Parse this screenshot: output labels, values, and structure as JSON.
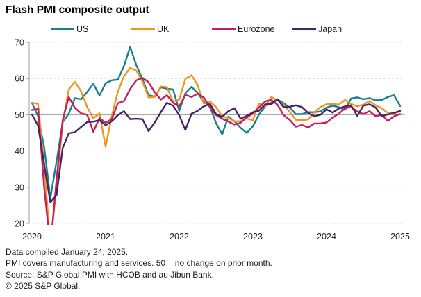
{
  "title": "Flash PMI composite output",
  "footer": {
    "line1": "Data compiled January 24, 2025.",
    "line2": "PMI covers manufacturing and services. 50 = no change on prior month.",
    "line3": "Source: S&P Global PMI with HCOB and au Jibun Bank.",
    "line4": "© 2025 S&P Global."
  },
  "colors": {
    "grid_dashed": "#dcdcdc",
    "grid_solid": "#9c9c9c",
    "axis": "#9c9c9c",
    "text": "#1f1f1f"
  },
  "chart_data": {
    "type": "line",
    "title": "Flash PMI composite output",
    "x_unit": "month",
    "x_range": [
      "2020-01",
      "2025-01"
    ],
    "x_tick_labels": [
      "2020",
      "2021",
      "2022",
      "2023",
      "2024",
      "2025"
    ],
    "y_ticks": [
      20,
      30,
      40,
      50,
      60,
      70
    ],
    "ylim": [
      20,
      70
    ],
    "reference_line": 50,
    "grid": "horizontal, dashed except solid line at 50",
    "legend_position": "top",
    "series": [
      {
        "name": "US",
        "color": "#17808e",
        "values": [
          53.3,
          49.6,
          40.9,
          27.0,
          37.0,
          47.9,
          50.3,
          54.6,
          54.3,
          56.3,
          58.6,
          55.3,
          58.7,
          59.5,
          59.7,
          63.5,
          68.7,
          63.7,
          59.9,
          55.4,
          55.0,
          57.6,
          57.2,
          57.0,
          51.1,
          55.9,
          57.7,
          56.0,
          53.6,
          52.3,
          47.7,
          44.6,
          49.5,
          48.2,
          46.4,
          45.0,
          46.8,
          50.1,
          52.3,
          53.4,
          54.3,
          53.2,
          52.0,
          50.2,
          50.2,
          50.7,
          50.7,
          50.9,
          52.0,
          52.5,
          52.1,
          51.3,
          54.5,
          54.8,
          54.3,
          54.6,
          54.0,
          54.1,
          54.9,
          55.4,
          52.4
        ]
      },
      {
        "name": "UK",
        "color": "#f0941e",
        "values": [
          53.3,
          53.0,
          36.0,
          13.8,
          30.0,
          47.7,
          57.0,
          59.1,
          56.5,
          52.1,
          49.0,
          50.4,
          41.2,
          49.6,
          56.4,
          60.7,
          62.9,
          62.2,
          59.2,
          54.8,
          54.9,
          57.8,
          57.6,
          53.6,
          54.2,
          59.9,
          60.9,
          58.2,
          53.1,
          53.7,
          52.1,
          49.6,
          49.1,
          48.2,
          48.2,
          49.0,
          48.5,
          53.1,
          52.2,
          54.9,
          54.0,
          52.8,
          50.8,
          48.6,
          48.5,
          48.7,
          50.7,
          52.1,
          52.9,
          53.0,
          52.8,
          54.1,
          53.0,
          52.3,
          52.8,
          53.8,
          52.6,
          51.8,
          50.5,
          50.4,
          50.9
        ]
      },
      {
        "name": "Eurozone",
        "color": "#c41e5c",
        "values": [
          51.3,
          51.6,
          29.7,
          13.6,
          31.9,
          48.5,
          54.9,
          51.9,
          50.4,
          50.0,
          45.3,
          49.1,
          47.8,
          48.8,
          53.2,
          53.8,
          57.1,
          59.5,
          60.2,
          59.0,
          56.2,
          54.2,
          55.4,
          53.3,
          52.3,
          55.5,
          54.9,
          55.8,
          54.8,
          52.0,
          49.9,
          48.9,
          48.1,
          47.3,
          47.8,
          49.3,
          50.3,
          52.0,
          53.7,
          54.1,
          52.8,
          49.9,
          48.6,
          46.7,
          47.2,
          46.5,
          47.6,
          47.6,
          47.9,
          49.2,
          50.3,
          51.7,
          52.2,
          50.9,
          50.2,
          51.0,
          49.6,
          50.0,
          48.3,
          49.6,
          50.2
        ]
      },
      {
        "name": "Japan",
        "color": "#472366",
        "values": [
          50.1,
          47.0,
          36.2,
          25.8,
          27.8,
          40.8,
          44.9,
          45.2,
          46.6,
          48.0,
          48.1,
          48.5,
          47.1,
          48.2,
          49.9,
          51.0,
          48.8,
          48.9,
          48.8,
          45.5,
          47.9,
          50.7,
          53.3,
          52.5,
          49.9,
          45.8,
          50.3,
          51.1,
          52.3,
          53.0,
          50.2,
          49.4,
          51.0,
          51.8,
          48.9,
          49.7,
          50.7,
          51.1,
          52.9,
          52.9,
          54.3,
          52.1,
          52.2,
          52.6,
          52.1,
          50.5,
          49.6,
          50.0,
          51.5,
          50.6,
          51.7,
          52.3,
          52.6,
          49.7,
          52.5,
          52.9,
          52.0,
          49.6,
          50.1,
          50.5,
          51.1
        ]
      }
    ]
  }
}
